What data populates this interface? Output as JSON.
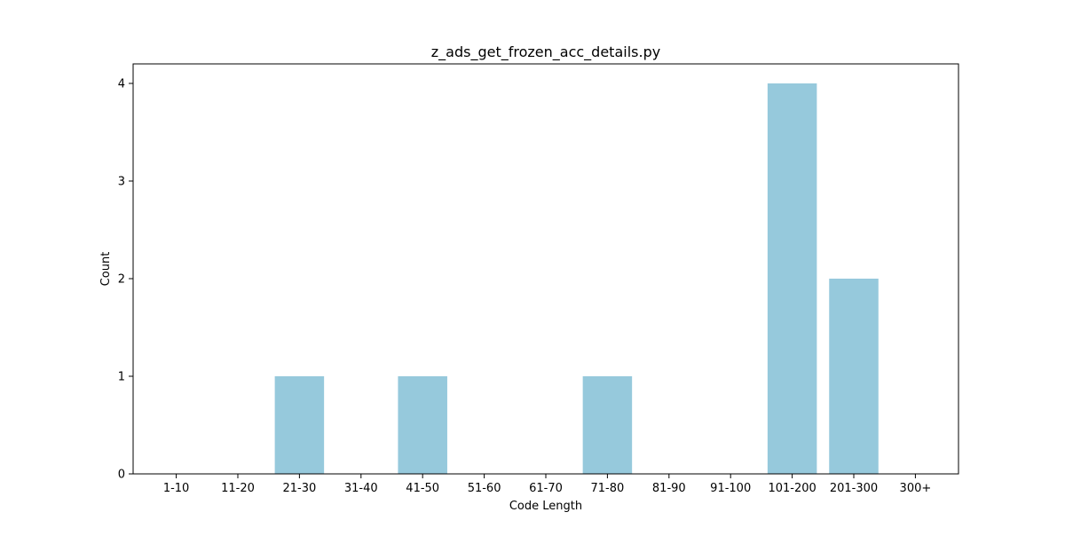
{
  "chart_data": {
    "type": "bar",
    "title": "z_ads_get_frozen_acc_details.py",
    "xlabel": "Code Length",
    "ylabel": "Count",
    "categories": [
      "1-10",
      "11-20",
      "21-30",
      "31-40",
      "41-50",
      "51-60",
      "61-70",
      "71-80",
      "81-90",
      "91-100",
      "101-200",
      "201-300",
      "300+"
    ],
    "values": [
      0,
      0,
      1,
      0,
      1,
      0,
      0,
      1,
      0,
      0,
      4,
      2,
      0
    ],
    "yticks": [
      "0",
      "1",
      "2",
      "3",
      "4"
    ],
    "ylim": [
      0,
      4.2
    ],
    "bar_color": "#96c9dc",
    "grid": false,
    "legend": "none"
  }
}
